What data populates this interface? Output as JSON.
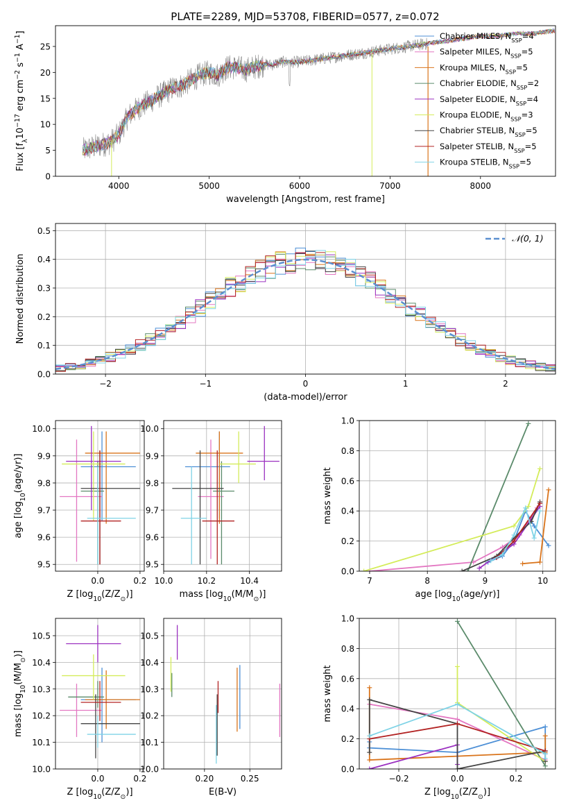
{
  "figure_title": "PLATE=2289, MJD=53708, FIBERID=0577, z=0.072",
  "colors": {
    "c0": "#4c8fd6",
    "c1": "#e377c2",
    "c2": "#d9731a",
    "c3": "#5a8a6a",
    "c4": "#9b30c0",
    "c5": "#d4ec5a",
    "c6": "#444444",
    "c7": "#b22222",
    "c8": "#7fd3e6",
    "normal": "#5b8fd0"
  },
  "chart_data": [
    {
      "id": "spectrum",
      "type": "line",
      "xlabel": "wavelength [Angstrom, rest frame]",
      "ylabel": "Flux [f",
      "ylabel_sub": "λ",
      "ylabel_rest": "10",
      "ylabel_exp": "−17",
      "ylabel_units": " erg cm",
      "ylabel_exp2": "−2",
      "ylabel_units2": " s",
      "ylabel_exp3": "−1",
      "ylabel_units3": " A",
      "ylabel_exp4": "−1",
      "ylabel_end": "]",
      "xlim": [
        3300,
        8830
      ],
      "ylim": [
        0,
        29
      ],
      "xticks": [
        4000,
        5000,
        6000,
        7000,
        8000
      ],
      "yticks": [
        0,
        5,
        10,
        15,
        20,
        25
      ],
      "grid": false,
      "legend_position": "top-right",
      "spectrum_anchor_x": [
        3600,
        3700,
        3800,
        3900,
        4000,
        4100,
        4200,
        4300,
        4400,
        4500,
        4600,
        4700,
        4800,
        4900,
        5000,
        5100,
        5200,
        5300,
        5400,
        5500,
        5600,
        5700,
        5800,
        5900,
        6000,
        6200,
        6400,
        6600,
        6800,
        7000,
        7200,
        7400,
        7600,
        7800,
        8000,
        8200,
        8400,
        8600,
        8800
      ],
      "spectrum_anchor_y": [
        5,
        5.5,
        6,
        6.5,
        8,
        11.5,
        13,
        14,
        15,
        16,
        17,
        17.5,
        18.5,
        19.5,
        20,
        19.5,
        21,
        21,
        20.5,
        21,
        21.5,
        21.5,
        22,
        22,
        22,
        22.5,
        23,
        23.5,
        24,
        24.5,
        25,
        25.5,
        26,
        26.5,
        27,
        27,
        27.5,
        27.5,
        28
      ],
      "series": [
        {
          "name": "Chabrier MILES, N",
          "sub": "SSP",
          "suffix": "=4",
          "color": "c0"
        },
        {
          "name": "Salpeter MILES, N",
          "sub": "SSP",
          "suffix": "=5",
          "color": "c1"
        },
        {
          "name": "Kroupa MILES, N",
          "sub": "SSP",
          "suffix": "=5",
          "color": "c2"
        },
        {
          "name": "Chabrier ELODIE, N",
          "sub": "SSP",
          "suffix": "=2",
          "color": "c3"
        },
        {
          "name": "Salpeter ELODIE, N",
          "sub": "SSP",
          "suffix": "=4",
          "color": "c4"
        },
        {
          "name": "Kroupa ELODIE, N",
          "sub": "SSP",
          "suffix": "=3",
          "color": "c5"
        },
        {
          "name": "Chabrier STELIB, N",
          "sub": "SSP",
          "suffix": "=5",
          "color": "c6"
        },
        {
          "name": "Salpeter STELIB, N",
          "sub": "SSP",
          "suffix": "=5",
          "color": "c7"
        },
        {
          "name": "Kroupa STELIB, N",
          "sub": "SSP",
          "suffix": "=5",
          "color": "c8"
        }
      ]
    },
    {
      "id": "residuals",
      "type": "histogram",
      "xlabel": "(data-model)/error",
      "ylabel": "Normed distribution",
      "xlim": [
        -2.5,
        2.5
      ],
      "ylim": [
        0,
        0.525
      ],
      "xticks": [
        -2,
        -1,
        0,
        1,
        2
      ],
      "xticklabels": [
        "−2",
        "−1",
        "0",
        "1",
        "2"
      ],
      "yticks": [
        0.0,
        0.1,
        0.2,
        0.3,
        0.4,
        0.5
      ],
      "yticklabels": [
        "0.0",
        "0.1",
        "0.2",
        "0.3",
        "0.4",
        "0.5"
      ],
      "grid": true,
      "legend_position": "top-right",
      "legend_label": "𝒩(0, 1)",
      "bin_width": 0.1,
      "bin_start": -2.5
    },
    {
      "id": "age_vs_Z",
      "type": "errorbar",
      "xlabel": "Z [log",
      "xlabel_sub": "10",
      "xlabel_rest": "(Z/Z",
      "xlabel_sub2": "⊙",
      "xlabel_end": ")]",
      "ylabel": "age  [log",
      "ylabel_sub": "10",
      "ylabel_rest": "(age/yr)]",
      "xlim": [
        -0.2,
        0.22
      ],
      "ylim": [
        9.475,
        10.03
      ],
      "xticks": [
        0.0,
        0.2
      ],
      "xticklabels": [
        "0.0",
        "0.2"
      ],
      "yticks": [
        9.5,
        9.6,
        9.7,
        9.8,
        9.9,
        10.0
      ],
      "yticklabels": [
        "9.5",
        "9.6",
        "9.7",
        "9.8",
        "9.9",
        "10.0"
      ],
      "grid": true,
      "points": [
        {
          "color": "c0",
          "x": 0.02,
          "y": 9.86,
          "x_lo": -0.08,
          "x_hi": 0.18,
          "y_lo": 9.66,
          "y_hi": 9.99
        },
        {
          "color": "c1",
          "x": -0.1,
          "y": 9.75,
          "x_lo": -0.18,
          "x_hi": 0.02,
          "y_lo": 9.51,
          "y_hi": 9.96
        },
        {
          "color": "c2",
          "x": 0.04,
          "y": 9.91,
          "x_lo": -0.06,
          "x_hi": 0.2,
          "y_lo": 9.65,
          "y_hi": 9.99
        },
        {
          "color": "c3",
          "x": 0.0,
          "y": 9.77,
          "x_lo": -0.08,
          "x_hi": 0.03,
          "y_lo": 9.5,
          "y_hi": 9.88
        },
        {
          "color": "c4",
          "x": -0.03,
          "y": 9.88,
          "x_lo": -0.15,
          "x_hi": 0.11,
          "y_lo": 9.7,
          "y_hi": 10.01
        },
        {
          "color": "c5",
          "x": -0.02,
          "y": 9.87,
          "x_lo": -0.17,
          "x_hi": 0.13,
          "y_lo": 9.66,
          "y_hi": 9.99
        },
        {
          "color": "c6",
          "x": 0.01,
          "y": 9.78,
          "x_lo": -0.08,
          "x_hi": 0.2,
          "y_lo": 9.5,
          "y_hi": 9.92
        },
        {
          "color": "c7",
          "x": 0.01,
          "y": 9.66,
          "x_lo": -0.08,
          "x_hi": 0.11,
          "y_lo": 9.5,
          "y_hi": 9.92
        },
        {
          "color": "c8",
          "x": 0.0,
          "y": 9.67,
          "x_lo": -0.05,
          "x_hi": 0.18,
          "y_lo": 9.5,
          "y_hi": 9.86
        }
      ]
    },
    {
      "id": "age_vs_mass",
      "type": "errorbar",
      "xlabel": "mass [log",
      "xlabel_sub": "10",
      "xlabel_rest": "(M/M",
      "xlabel_sub2": "⊙",
      "xlabel_end": ")]",
      "xlim": [
        10.0,
        10.55
      ],
      "ylim": [
        9.475,
        10.03
      ],
      "xticks": [
        10.0,
        10.2,
        10.4
      ],
      "xticklabels": [
        "10.0",
        "10.2",
        "10.4"
      ],
      "yticks": [
        9.5,
        9.6,
        9.7,
        9.8,
        9.9,
        10.0
      ],
      "yticklabels": [
        "9.5",
        "9.6",
        "9.7",
        "9.8",
        "9.9",
        "10.0"
      ],
      "grid": true,
      "points": [
        {
          "color": "c0",
          "x": 10.26,
          "y": 9.86,
          "x_lo": 10.1,
          "x_hi": 10.31,
          "y_lo": 9.67,
          "y_hi": 9.99
        },
        {
          "color": "c1",
          "x": 10.22,
          "y": 9.75,
          "x_lo": 10.16,
          "x_hi": 10.28,
          "y_lo": 9.52,
          "y_hi": 9.96
        },
        {
          "color": "c2",
          "x": 10.26,
          "y": 9.91,
          "x_lo": 10.15,
          "x_hi": 10.37,
          "y_lo": 9.65,
          "y_hi": 9.99
        },
        {
          "color": "c3",
          "x": 10.27,
          "y": 9.77,
          "x_lo": 10.23,
          "x_hi": 10.33,
          "y_lo": 9.5,
          "y_hi": 9.88
        },
        {
          "color": "c4",
          "x": 10.47,
          "y": 9.88,
          "x_lo": 10.39,
          "x_hi": 10.54,
          "y_lo": 9.81,
          "y_hi": 10.01
        },
        {
          "color": "c5",
          "x": 10.35,
          "y": 9.87,
          "x_lo": 10.26,
          "x_hi": 10.43,
          "y_lo": 9.8,
          "y_hi": 9.99
        },
        {
          "color": "c6",
          "x": 10.17,
          "y": 9.78,
          "x_lo": 10.04,
          "x_hi": 10.28,
          "y_lo": 9.5,
          "y_hi": 9.92
        },
        {
          "color": "c7",
          "x": 10.25,
          "y": 9.66,
          "x_lo": 10.18,
          "x_hi": 10.33,
          "y_lo": 9.5,
          "y_hi": 9.92
        },
        {
          "color": "c8",
          "x": 10.13,
          "y": 9.67,
          "x_lo": 10.08,
          "x_hi": 10.2,
          "y_lo": 9.5,
          "y_hi": 9.86
        }
      ]
    },
    {
      "id": "mass_weight_vs_age",
      "type": "line",
      "xlabel": "age  [log",
      "xlabel_sub": "10",
      "xlabel_rest": "(age/yr)]",
      "ylabel": "mass weight",
      "xlim": [
        6.82,
        10.22
      ],
      "ylim": [
        0,
        1
      ],
      "xticks": [
        7,
        8,
        9,
        10
      ],
      "xticklabels": [
        "7",
        "8",
        "9",
        "10"
      ],
      "yticks": [
        0.0,
        0.2,
        0.4,
        0.6,
        0.8,
        1.0
      ],
      "yticklabels": [
        "0.0",
        "0.2",
        "0.4",
        "0.6",
        "0.8",
        "1.0"
      ],
      "grid": true,
      "series": [
        {
          "color": "c0",
          "x": [
            9.05,
            9.3,
            9.5,
            9.7,
            9.85,
            10.1
          ],
          "y": [
            0.06,
            0.1,
            0.2,
            0.4,
            0.3,
            0.17
          ]
        },
        {
          "color": "c1",
          "x": [
            7.0,
            8.8,
            9.3,
            9.6,
            9.9
          ],
          "y": [
            0.0,
            0.06,
            0.16,
            0.24,
            0.42
          ]
        },
        {
          "color": "c2",
          "x": [
            9.65,
            9.95,
            10.1
          ],
          "y": [
            0.05,
            0.06,
            0.54
          ]
        },
        {
          "color": "c3",
          "x": [
            8.7,
            9.75
          ],
          "y": [
            0.0,
            0.98
          ]
        },
        {
          "color": "c4",
          "x": [
            8.9,
            9.5,
            9.95
          ],
          "y": [
            0.02,
            0.18,
            0.43
          ]
        },
        {
          "color": "c5",
          "x": [
            6.9,
            9.5,
            9.75,
            9.95
          ],
          "y": [
            0.0,
            0.3,
            0.43,
            0.68
          ]
        },
        {
          "color": "c6",
          "x": [
            8.6,
            9.2,
            9.5,
            9.8,
            9.95
          ],
          "y": [
            0.0,
            0.1,
            0.22,
            0.33,
            0.46
          ]
        },
        {
          "color": "c7",
          "x": [
            9.2,
            9.5,
            9.95
          ],
          "y": [
            0.09,
            0.2,
            0.45
          ]
        },
        {
          "color": "c8",
          "x": [
            9.1,
            9.3,
            9.5,
            9.7,
            9.85,
            9.95
          ],
          "y": [
            0.07,
            0.11,
            0.24,
            0.42,
            0.22,
            0.4
          ]
        }
      ]
    },
    {
      "id": "mass_vs_Z",
      "type": "errorbar",
      "xlabel": "Z [log",
      "xlabel_sub": "10",
      "xlabel_rest": "(Z/Z",
      "xlabel_sub2": "⊙",
      "xlabel_end": ")]",
      "ylabel": "mass [log",
      "ylabel_sub": "10",
      "ylabel_rest": "(M/M",
      "ylabel_sub2": "⊙",
      "ylabel_end": ")]",
      "xlim": [
        -0.2,
        0.22
      ],
      "ylim": [
        10.0,
        10.565
      ],
      "xticks": [
        0.0,
        0.2
      ],
      "xticklabels": [
        "0.0",
        "0.2"
      ],
      "yticks": [
        10.0,
        10.1,
        10.2,
        10.3,
        10.4,
        10.5
      ],
      "yticklabels": [
        "10.0",
        "10.1",
        "10.2",
        "10.3",
        "10.4",
        "10.5"
      ],
      "grid": true,
      "points": [
        {
          "color": "c0",
          "x": 0.02,
          "y": 10.26,
          "x_lo": -0.08,
          "x_hi": 0.18,
          "y_lo": 10.1,
          "y_hi": 10.38
        },
        {
          "color": "c1",
          "x": -0.1,
          "y": 10.22,
          "x_lo": -0.18,
          "x_hi": 0.02,
          "y_lo": 10.12,
          "y_hi": 10.32
        },
        {
          "color": "c2",
          "x": 0.04,
          "y": 10.26,
          "x_lo": -0.06,
          "x_hi": 0.2,
          "y_lo": 10.15,
          "y_hi": 10.37
        },
        {
          "color": "c3",
          "x": 0.0,
          "y": 10.27,
          "x_lo": -0.14,
          "x_hi": 0.03,
          "y_lo": 10.23,
          "y_hi": 10.33
        },
        {
          "color": "c4",
          "x": 0.0,
          "y": 10.47,
          "x_lo": -0.15,
          "x_hi": 0.11,
          "y_lo": 10.4,
          "y_hi": 10.54
        },
        {
          "color": "c5",
          "x": -0.02,
          "y": 10.35,
          "x_lo": -0.17,
          "x_hi": 0.13,
          "y_lo": 10.26,
          "y_hi": 10.43
        },
        {
          "color": "c6",
          "x": -0.01,
          "y": 10.17,
          "x_lo": -0.08,
          "x_hi": 0.2,
          "y_lo": 10.04,
          "y_hi": 10.28
        },
        {
          "color": "c7",
          "x": 0.01,
          "y": 10.25,
          "x_lo": -0.08,
          "x_hi": 0.11,
          "y_lo": 10.18,
          "y_hi": 10.33
        },
        {
          "color": "c8",
          "x": 0.0,
          "y": 10.13,
          "x_lo": -0.05,
          "x_hi": 0.18,
          "y_lo": 10.08,
          "y_hi": 10.2
        }
      ]
    },
    {
      "id": "mass_vs_ebv",
      "type": "errorbar",
      "xlabel": "E(B-V)",
      "xlim": [
        0.155,
        0.285
      ],
      "ylim": [
        10.0,
        10.565
      ],
      "xticks": [
        0.2,
        0.25
      ],
      "xticklabels": [
        "0.20",
        "0.25"
      ],
      "yticks": [
        10.0,
        10.1,
        10.2,
        10.3,
        10.4,
        10.5
      ],
      "yticklabels": [
        "10.0",
        "10.1",
        "10.2",
        "10.3",
        "10.4",
        "10.5"
      ],
      "grid": true,
      "points": [
        {
          "color": "c0",
          "x": 0.239,
          "y": 10.26,
          "y_lo": 10.15,
          "y_hi": 10.39
        },
        {
          "color": "c1",
          "x": 0.283,
          "y": 10.22,
          "y_lo": 10.12,
          "y_hi": 10.32
        },
        {
          "color": "c2",
          "x": 0.236,
          "y": 10.26,
          "y_lo": 10.14,
          "y_hi": 10.38
        },
        {
          "color": "c3",
          "x": 0.164,
          "y": 10.3,
          "y_lo": 10.27,
          "y_hi": 10.36
        },
        {
          "color": "c4",
          "x": 0.17,
          "y": 10.47,
          "y_lo": 10.41,
          "y_hi": 10.54
        },
        {
          "color": "c5",
          "x": 0.163,
          "y": 10.35,
          "y_lo": 10.29,
          "y_hi": 10.42
        },
        {
          "color": "c6",
          "x": 0.214,
          "y": 10.17,
          "y_lo": 10.05,
          "y_hi": 10.28
        },
        {
          "color": "c7",
          "x": 0.215,
          "y": 10.28,
          "y_lo": 10.21,
          "y_hi": 10.33
        },
        {
          "color": "c8",
          "x": 0.213,
          "y": 10.13,
          "y_lo": 10.02,
          "y_hi": 10.24
        }
      ]
    },
    {
      "id": "mass_weight_vs_Z",
      "type": "line",
      "xlabel": "Z [log",
      "xlabel_sub": "10",
      "xlabel_rest": "(Z/Z",
      "xlabel_sub2": "⊙",
      "xlabel_end": ")]",
      "ylabel": "mass weight",
      "xlim": [
        -0.335,
        0.335
      ],
      "ylim": [
        0,
        1
      ],
      "xticks": [
        -0.2,
        0.0,
        0.2
      ],
      "xticklabels": [
        "−0.2",
        "0.0",
        "0.2"
      ],
      "yticks": [
        0.0,
        0.2,
        0.4,
        0.6,
        0.8,
        1.0
      ],
      "yticklabels": [
        "0.0",
        "0.2",
        "0.4",
        "0.6",
        "0.8",
        "1.0"
      ],
      "grid": true,
      "series": [
        {
          "color": "c0",
          "x": [
            -0.3,
            -0.3,
            0.0,
            0.3,
            0.3
          ],
          "y": [
            0.18,
            0.14,
            0.11,
            0.28,
            0.1
          ]
        },
        {
          "color": "c1",
          "x": [
            -0.3,
            0.0,
            0.3,
            0.3
          ],
          "y": [
            0.43,
            0.33,
            0.06,
            0.1
          ]
        },
        {
          "color": "c2",
          "x": [
            -0.3,
            -0.3,
            0.3,
            0.3
          ],
          "y": [
            0.54,
            0.06,
            0.11,
            0.22
          ]
        },
        {
          "color": "c3",
          "x": [
            0.0,
            0.3
          ],
          "y": [
            0.98,
            0.02
          ]
        },
        {
          "color": "c4",
          "x": [
            -0.3,
            0.0,
            0.0
          ],
          "y": [
            0.0,
            0.16,
            0.03
          ]
        },
        {
          "color": "c5",
          "x": [
            0.0,
            0.0,
            0.3
          ],
          "y": [
            0.68,
            0.44,
            0.05
          ]
        },
        {
          "color": "c6",
          "x": [
            -0.3,
            -0.3,
            0.0,
            0.0,
            0.3,
            0.3
          ],
          "y": [
            0.11,
            0.46,
            0.3,
            0.0,
            0.12,
            0.05
          ]
        },
        {
          "color": "c7",
          "x": [
            -0.3,
            0.0,
            0.3
          ],
          "y": [
            0.2,
            0.3,
            0.12
          ]
        },
        {
          "color": "c8",
          "x": [
            -0.3,
            0.0,
            0.3,
            0.3
          ],
          "y": [
            0.22,
            0.43,
            0.1,
            0.07
          ]
        }
      ]
    }
  ]
}
